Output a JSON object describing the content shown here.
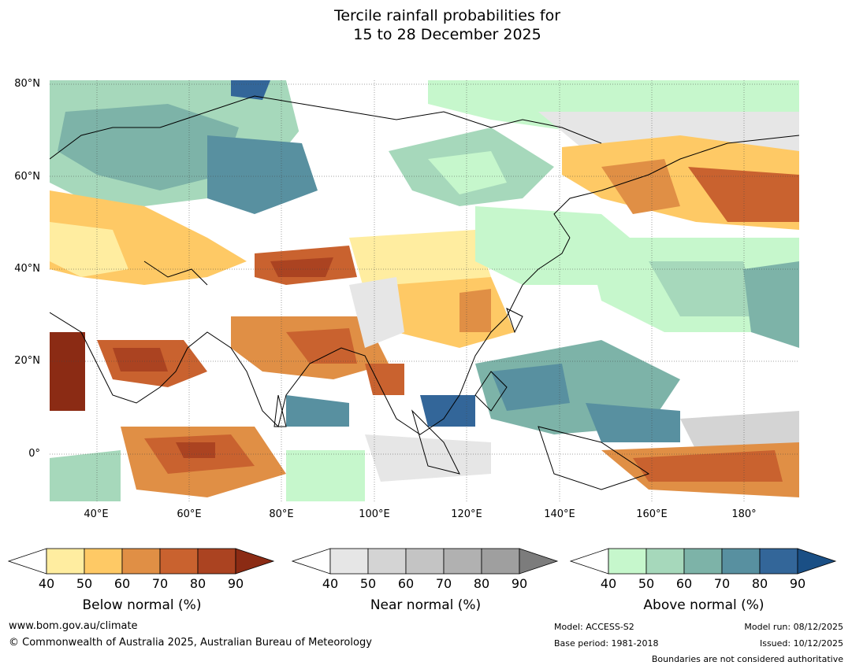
{
  "title": {
    "line1": "Tercile rainfall probabilities for",
    "line2": "15 to 28 December 2025"
  },
  "map": {
    "lat_labels": [
      "80°N",
      "60°N",
      "40°N",
      "20°N",
      "0°"
    ],
    "lon_labels": [
      "40°E",
      "60°E",
      "80°E",
      "100°E",
      "120°E",
      "140°E",
      "160°E",
      "180°"
    ]
  },
  "colorbars": [
    {
      "name": "below",
      "title": "Below normal (%)",
      "ticks": [
        "40",
        "50",
        "60",
        "70",
        "80",
        "90"
      ],
      "colors": [
        "#ffeda0",
        "#fec965",
        "#e08f45",
        "#c9622f",
        "#ab4321",
        "#8b2b14"
      ]
    },
    {
      "name": "near",
      "title": "Near normal (%)",
      "ticks": [
        "40",
        "50",
        "60",
        "70",
        "80",
        "90"
      ],
      "colors": [
        "#e6e6e6",
        "#d4d4d4",
        "#c4c4c4",
        "#b1b1b1",
        "#9f9f9f",
        "#7c7c7c"
      ]
    },
    {
      "name": "above",
      "title": "Above normal (%)",
      "ticks": [
        "40",
        "50",
        "60",
        "70",
        "80",
        "90"
      ],
      "colors": [
        "#c6f7cc",
        "#a6d8bb",
        "#7db3a8",
        "#5890a0",
        "#336699",
        "#1a4f85"
      ]
    }
  ],
  "footer": {
    "website": "www.bom.gov.au/climate",
    "copyright": "© Commonwealth of Australia 2025, Australian Bureau of Meteorology",
    "model": "Model: ACCESS-S2",
    "base_period": "Base period: 1981-2018",
    "model_run": "Model run: 08/12/2025",
    "issued": "Issued: 10/12/2025",
    "boundaries": "Boundaries are not considered authoritative"
  }
}
